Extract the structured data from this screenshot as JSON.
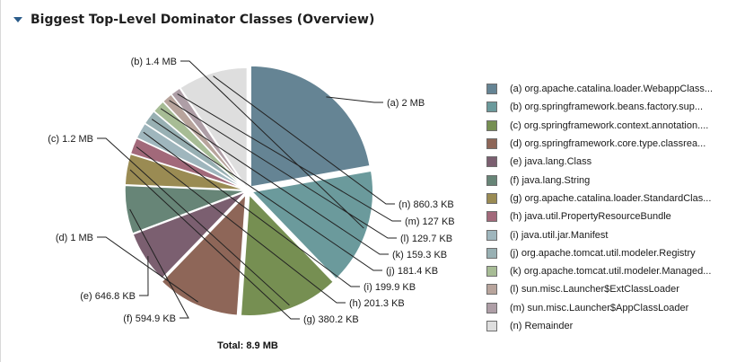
{
  "header": {
    "title": "Biggest Top-Level Dominator Classes (Overview)",
    "toggle_icon": "triangle-down-icon"
  },
  "chart_data": {
    "type": "pie",
    "total_label": "Total: 8.9 MB",
    "slices": [
      {
        "key": "a",
        "label": "(a)  2 MB",
        "legend": "(a)  org.apache.catalina.loader.WebappClass...",
        "value_kb": 2048,
        "color": "#658494"
      },
      {
        "key": "b",
        "label": "(b)  1.4 MB",
        "legend": "(b)  org.springframework.beans.factory.sup...",
        "value_kb": 1434,
        "color": "#6b9a9c"
      },
      {
        "key": "c",
        "label": "(c)  1.2 MB",
        "legend": "(c)  org.springframework.context.annotation....",
        "value_kb": 1229,
        "color": "#768f52"
      },
      {
        "key": "d",
        "label": "(d)  1 MB",
        "legend": "(d)  org.springframework.core.type.classrea...",
        "value_kb": 1024,
        "color": "#8e6658"
      },
      {
        "key": "e",
        "label": "(e)  646.8 KB",
        "legend": "(e)  java.lang.Class",
        "value_kb": 646.8,
        "color": "#7b5f70"
      },
      {
        "key": "f",
        "label": "(f)  594.9 KB",
        "legend": "(f)  java.lang.String",
        "value_kb": 594.9,
        "color": "#678577"
      },
      {
        "key": "g",
        "label": "(g)  380.2 KB",
        "legend": "(g)  org.apache.catalina.loader.StandardClas...",
        "value_kb": 380.2,
        "color": "#9a8b53"
      },
      {
        "key": "h",
        "label": "(h)  201.3 KB",
        "legend": "(h)  java.util.PropertyResourceBundle",
        "value_kb": 201.3,
        "color": "#a2697a"
      },
      {
        "key": "i",
        "label": "(i)  199.9 KB",
        "legend": "(i)  java.util.jar.Manifest",
        "value_kb": 199.9,
        "color": "#9fb6bd"
      },
      {
        "key": "j",
        "label": "(j)  181.4 KB",
        "legend": "(j)  org.apache.tomcat.util.modeler.Registry",
        "value_kb": 181.4,
        "color": "#98b0b3"
      },
      {
        "key": "k",
        "label": "(k)  159.3 KB",
        "legend": "(k)  org.apache.tomcat.util.modeler.Managed...",
        "value_kb": 159.3,
        "color": "#a7bc95"
      },
      {
        "key": "l",
        "label": "(l)  129.7 KB",
        "legend": "(l)  sun.misc.Launcher$ExtClassLoader",
        "value_kb": 129.7,
        "color": "#b8a49c"
      },
      {
        "key": "m",
        "label": "(m)  127 KB",
        "legend": "(m)  sun.misc.Launcher$AppClassLoader",
        "value_kb": 127,
        "color": "#ae9ea6"
      },
      {
        "key": "n",
        "label": "(n)  860.3 KB",
        "legend": "(n)  Remainder",
        "value_kb": 860.3,
        "color": "#dedede"
      }
    ]
  }
}
